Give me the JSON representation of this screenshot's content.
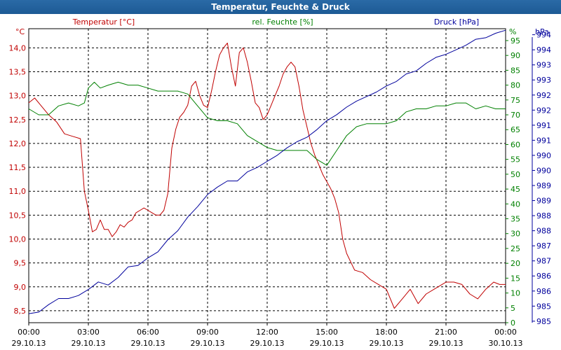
{
  "window": {
    "title": "Temperatur, Feuchte & Druck"
  },
  "colors": {
    "temperature": "#c00000",
    "humidity": "#008000",
    "pressure": "#00009c",
    "grid": "#000000",
    "title_bg": "#1f5e99"
  },
  "chart_data": {
    "type": "line",
    "title": "Temperatur, Feuchte & Druck",
    "x_ticks": [
      {
        "time": "00:00",
        "date": "29.10.13"
      },
      {
        "time": "03:00",
        "date": "29.10.13"
      },
      {
        "time": "06:00",
        "date": "29.10.13"
      },
      {
        "time": "09:00",
        "date": "29.10.13"
      },
      {
        "time": "12:00",
        "date": "29.10.13"
      },
      {
        "time": "15:00",
        "date": "29.10.13"
      },
      {
        "time": "18:00",
        "date": "29.10.13"
      },
      {
        "time": "21:00",
        "date": "29.10.13"
      },
      {
        "time": "00:00",
        "date": "30.10.13"
      }
    ],
    "xlim_hours": [
      0,
      24
    ],
    "axes": {
      "temperature": {
        "unit": "°C",
        "label": "Temperatur [°C]",
        "ylim": [
          8.25,
          14.4
        ],
        "ticks": [
          "14,0",
          "13,5",
          "13,0",
          "12,5",
          "12,0",
          "11,5",
          "11,0",
          "10,5",
          "10,0",
          "9,5",
          "9,0",
          "8,5"
        ]
      },
      "humidity": {
        "unit": "%",
        "label": "rel. Feuchte [%]",
        "ylim": [
          0,
          99
        ],
        "ticks": [
          "95",
          "90",
          "85",
          "80",
          "75",
          "70",
          "65",
          "60",
          "55",
          "50",
          "45",
          "40",
          "35",
          "30",
          "25",
          "20",
          "15",
          "10",
          "5",
          "0"
        ]
      },
      "pressure": {
        "unit": "hPa",
        "label": "Druck [hPa]",
        "ylim": [
          984.7,
          994.45
        ],
        "ticks": [
          "994",
          "994",
          "993",
          "993",
          "992",
          "992",
          "991",
          "991",
          "990",
          "990",
          "989",
          "989",
          "988",
          "988",
          "987",
          "987",
          "986",
          "986",
          "985",
          "985"
        ]
      }
    },
    "series": [
      {
        "name": "Temperatur [°C]",
        "x": [
          0,
          0.3,
          0.6,
          1,
          1.4,
          1.8,
          2.2,
          2.6,
          2.8,
          3.0,
          3.2,
          3.4,
          3.6,
          3.8,
          4.0,
          4.2,
          4.4,
          4.6,
          4.8,
          5.0,
          5.2,
          5.4,
          5.6,
          5.8,
          6.0,
          6.2,
          6.4,
          6.6,
          6.8,
          7.0,
          7.2,
          7.4,
          7.6,
          7.8,
          8.0,
          8.2,
          8.4,
          8.6,
          8.8,
          9.0,
          9.2,
          9.4,
          9.6,
          9.8,
          10.0,
          10.2,
          10.4,
          10.6,
          10.8,
          11.0,
          11.2,
          11.4,
          11.6,
          11.8,
          12.0,
          12.2,
          12.4,
          12.6,
          12.8,
          13.0,
          13.2,
          13.4,
          13.6,
          13.8,
          14.0,
          14.2,
          14.4,
          14.6,
          14.8,
          15.0,
          15.2,
          15.4,
          15.6,
          15.8,
          16.0,
          16.4,
          16.8,
          17.2,
          17.6,
          18.0,
          18.4,
          18.8,
          19.2,
          19.6,
          20.0,
          20.4,
          20.8,
          21.0,
          21.4,
          21.8,
          22.2,
          22.6,
          23.0,
          23.4,
          23.7,
          24.0
        ],
        "values": [
          12.85,
          12.95,
          12.8,
          12.6,
          12.45,
          12.2,
          12.15,
          12.1,
          11.0,
          10.6,
          10.15,
          10.2,
          10.4,
          10.2,
          10.2,
          10.05,
          10.15,
          10.3,
          10.25,
          10.35,
          10.4,
          10.55,
          10.6,
          10.65,
          10.6,
          10.55,
          10.5,
          10.5,
          10.6,
          10.95,
          11.9,
          12.3,
          12.55,
          12.65,
          12.8,
          13.2,
          13.3,
          13.0,
          12.8,
          12.75,
          13.1,
          13.5,
          13.85,
          14.0,
          14.1,
          13.6,
          13.2,
          13.9,
          14.0,
          13.7,
          13.3,
          12.85,
          12.75,
          12.5,
          12.6,
          12.8,
          13.0,
          13.2,
          13.45,
          13.6,
          13.7,
          13.6,
          13.2,
          12.7,
          12.35,
          12.0,
          11.75,
          11.55,
          11.35,
          11.2,
          11.05,
          10.85,
          10.55,
          10.0,
          9.7,
          9.35,
          9.3,
          9.15,
          9.05,
          8.95,
          8.55,
          8.75,
          8.95,
          8.65,
          8.85,
          8.95,
          9.05,
          9.1,
          9.1,
          9.05,
          8.85,
          8.75,
          8.95,
          9.1,
          9.05,
          9.05
        ]
      },
      {
        "name": "rel. Feuchte [%]",
        "x": [
          0,
          0.5,
          1,
          1.5,
          2,
          2.5,
          2.8,
          3.0,
          3.3,
          3.6,
          4.0,
          4.5,
          5.0,
          5.5,
          6.0,
          6.5,
          7.0,
          7.5,
          8.0,
          8.5,
          9.0,
          9.5,
          10.0,
          10.5,
          11.0,
          11.5,
          12.0,
          12.5,
          13.0,
          13.5,
          14.0,
          14.5,
          15.0,
          15.5,
          16.0,
          16.5,
          17.0,
          17.5,
          18.0,
          18.5,
          19.0,
          19.5,
          20.0,
          20.5,
          21.0,
          21.5,
          22.0,
          22.5,
          23.0,
          23.5,
          24.0
        ],
        "values": [
          72,
          70,
          70,
          73,
          74,
          73,
          74,
          79,
          81,
          79,
          80,
          81,
          80,
          80,
          79,
          78,
          78,
          78,
          77,
          73,
          69,
          68,
          68,
          67,
          63,
          61,
          59,
          58,
          58,
          58,
          58,
          55,
          53,
          58,
          63,
          66,
          67,
          67,
          67,
          68,
          71,
          72,
          72,
          73,
          73,
          74,
          74,
          72,
          73,
          72,
          72
        ]
      },
      {
        "name": "Druck [hPa]",
        "x": [
          0,
          0.5,
          1,
          1.5,
          2,
          2.5,
          3.0,
          3.5,
          4.0,
          4.5,
          5.0,
          5.5,
          6.0,
          6.5,
          7.0,
          7.5,
          8.0,
          8.5,
          9.0,
          9.5,
          10.0,
          10.5,
          11.0,
          11.5,
          12.0,
          12.5,
          13.0,
          13.5,
          14.0,
          14.5,
          15.0,
          15.5,
          16.0,
          16.5,
          17.0,
          17.5,
          18.0,
          18.5,
          19.0,
          19.5,
          20.0,
          20.5,
          21.0,
          21.5,
          22.0,
          22.5,
          23.0,
          23.5,
          24.0
        ],
        "values": [
          985.0,
          985.05,
          985.3,
          985.5,
          985.5,
          985.6,
          985.8,
          986.05,
          985.95,
          986.2,
          986.55,
          986.6,
          986.85,
          987.05,
          987.45,
          987.75,
          988.2,
          988.55,
          988.95,
          989.2,
          989.4,
          989.4,
          989.7,
          989.85,
          990.05,
          990.25,
          990.5,
          990.7,
          990.85,
          991.1,
          991.4,
          991.6,
          991.85,
          992.05,
          992.2,
          992.35,
          992.55,
          992.7,
          992.95,
          993.05,
          993.3,
          993.5,
          993.6,
          993.75,
          993.9,
          994.1,
          994.15,
          994.3,
          994.4
        ]
      }
    ]
  }
}
